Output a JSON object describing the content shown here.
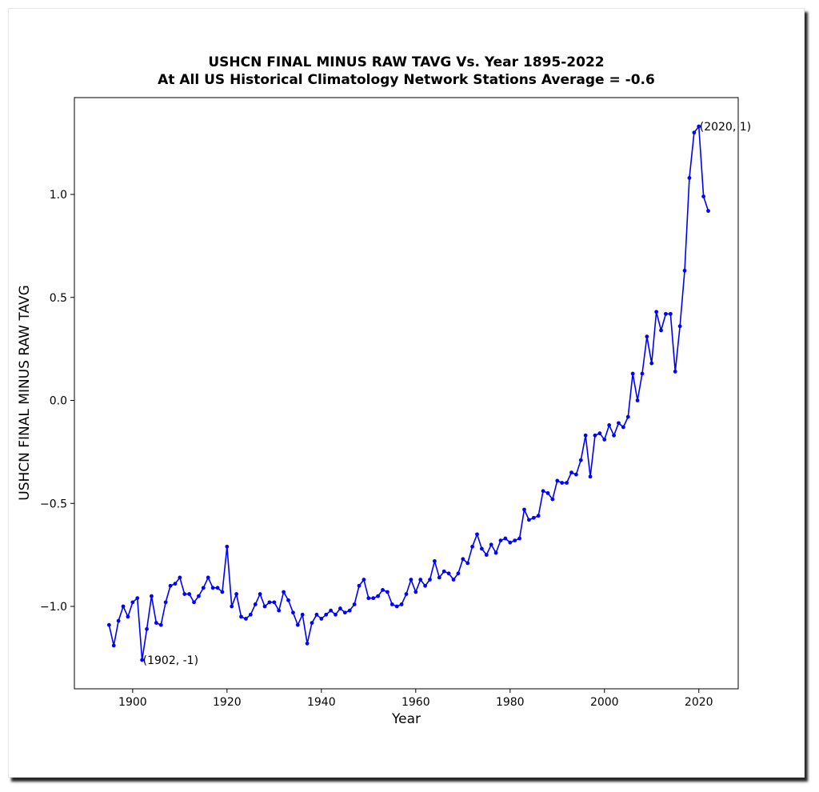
{
  "chart_data": {
    "type": "line",
    "title": "USHCN FINAL MINUS RAW TAVG Vs. Year 1895-2022",
    "subtitle": "At All US Historical Climatology Network Stations Average = -0.6",
    "xlabel": "Year",
    "ylabel": "USHCN FINAL MINUS RAW TAVG",
    "xlim": [
      1887.65,
      2028.35
    ],
    "ylim": [
      -1.4,
      1.47
    ],
    "x_ticks": [
      1900,
      1920,
      1940,
      1960,
      1980,
      2000,
      2020
    ],
    "x_tick_labels": [
      "1900",
      "1920",
      "1940",
      "1960",
      "1980",
      "2000",
      "2020"
    ],
    "y_ticks": [
      -1.0,
      -0.5,
      0.0,
      0.5,
      1.0
    ],
    "y_tick_labels": [
      "−1.0",
      "−0.5",
      "0.0",
      "0.5",
      "1.0"
    ],
    "grid": false,
    "line_color": "#0000ff",
    "series": [
      {
        "x": [
          1895,
          1896,
          1897,
          1898,
          1899,
          1900,
          1901,
          1902,
          1903,
          1904,
          1905,
          1906,
          1907,
          1908,
          1909,
          1910,
          1911,
          1912,
          1913,
          1914,
          1915,
          1916,
          1917,
          1918,
          1919,
          1920,
          1921,
          1922,
          1923,
          1924,
          1925,
          1926,
          1927,
          1928,
          1929,
          1930,
          1931,
          1932,
          1933,
          1934,
          1935,
          1936,
          1937,
          1938,
          1939,
          1940,
          1941,
          1942,
          1943,
          1944,
          1945,
          1946,
          1947,
          1948,
          1949,
          1950,
          1951,
          1952,
          1953,
          1954,
          1955,
          1956,
          1957,
          1958,
          1959,
          1960,
          1961,
          1962,
          1963,
          1964,
          1965,
          1966,
          1967,
          1968,
          1969,
          1970,
          1971,
          1972,
          1973,
          1974,
          1975,
          1976,
          1977,
          1978,
          1979,
          1980,
          1981,
          1982,
          1983,
          1984,
          1985,
          1986,
          1987,
          1988,
          1989,
          1990,
          1991,
          1992,
          1993,
          1994,
          1995,
          1996,
          1997,
          1998,
          1999,
          2000,
          2001,
          2002,
          2003,
          2004,
          2005,
          2006,
          2007,
          2008,
          2009,
          2010,
          2011,
          2012,
          2013,
          2014,
          2015,
          2016,
          2017,
          2018,
          2019,
          2020,
          2021,
          2022
        ],
        "y": [
          -1.09,
          -1.19,
          -1.07,
          -1.0,
          -1.05,
          -0.98,
          -0.96,
          -1.26,
          -1.11,
          -0.95,
          -1.08,
          -1.09,
          -0.98,
          -0.9,
          -0.89,
          -0.86,
          -0.94,
          -0.94,
          -0.98,
          -0.95,
          -0.91,
          -0.86,
          -0.91,
          -0.91,
          -0.93,
          -0.71,
          -1.0,
          -0.94,
          -1.05,
          -1.06,
          -1.04,
          -0.99,
          -0.94,
          -1.0,
          -0.98,
          -0.98,
          -1.02,
          -0.93,
          -0.97,
          -1.03,
          -1.09,
          -1.04,
          -1.18,
          -1.08,
          -1.04,
          -1.06,
          -1.04,
          -1.02,
          -1.04,
          -1.01,
          -1.03,
          -1.02,
          -0.99,
          -0.9,
          -0.87,
          -0.96,
          -0.96,
          -0.95,
          -0.92,
          -0.93,
          -0.99,
          -1.0,
          -0.99,
          -0.94,
          -0.87,
          -0.93,
          -0.87,
          -0.9,
          -0.87,
          -0.78,
          -0.86,
          -0.83,
          -0.84,
          -0.87,
          -0.84,
          -0.77,
          -0.79,
          -0.71,
          -0.65,
          -0.72,
          -0.75,
          -0.7,
          -0.74,
          -0.68,
          -0.67,
          -0.69,
          -0.68,
          -0.67,
          -0.53,
          -0.58,
          -0.57,
          -0.56,
          -0.44,
          -0.45,
          -0.48,
          -0.39,
          -0.4,
          -0.4,
          -0.35,
          -0.36,
          -0.29,
          -0.17,
          -0.37,
          -0.17,
          -0.16,
          -0.19,
          -0.12,
          -0.17,
          -0.11,
          -0.13,
          -0.08,
          0.13,
          0.0,
          0.13,
          0.31,
          0.18,
          0.43,
          0.34,
          0.42,
          0.42,
          0.14,
          0.36,
          0.63,
          1.08,
          1.3,
          1.33,
          0.99,
          0.92
        ]
      }
    ],
    "annotations": [
      {
        "text": "(1902, -1)",
        "x": 1902,
        "y": -1.26
      },
      {
        "text": "(2020, 1)",
        "x": 2020,
        "y": 1.33
      }
    ]
  }
}
